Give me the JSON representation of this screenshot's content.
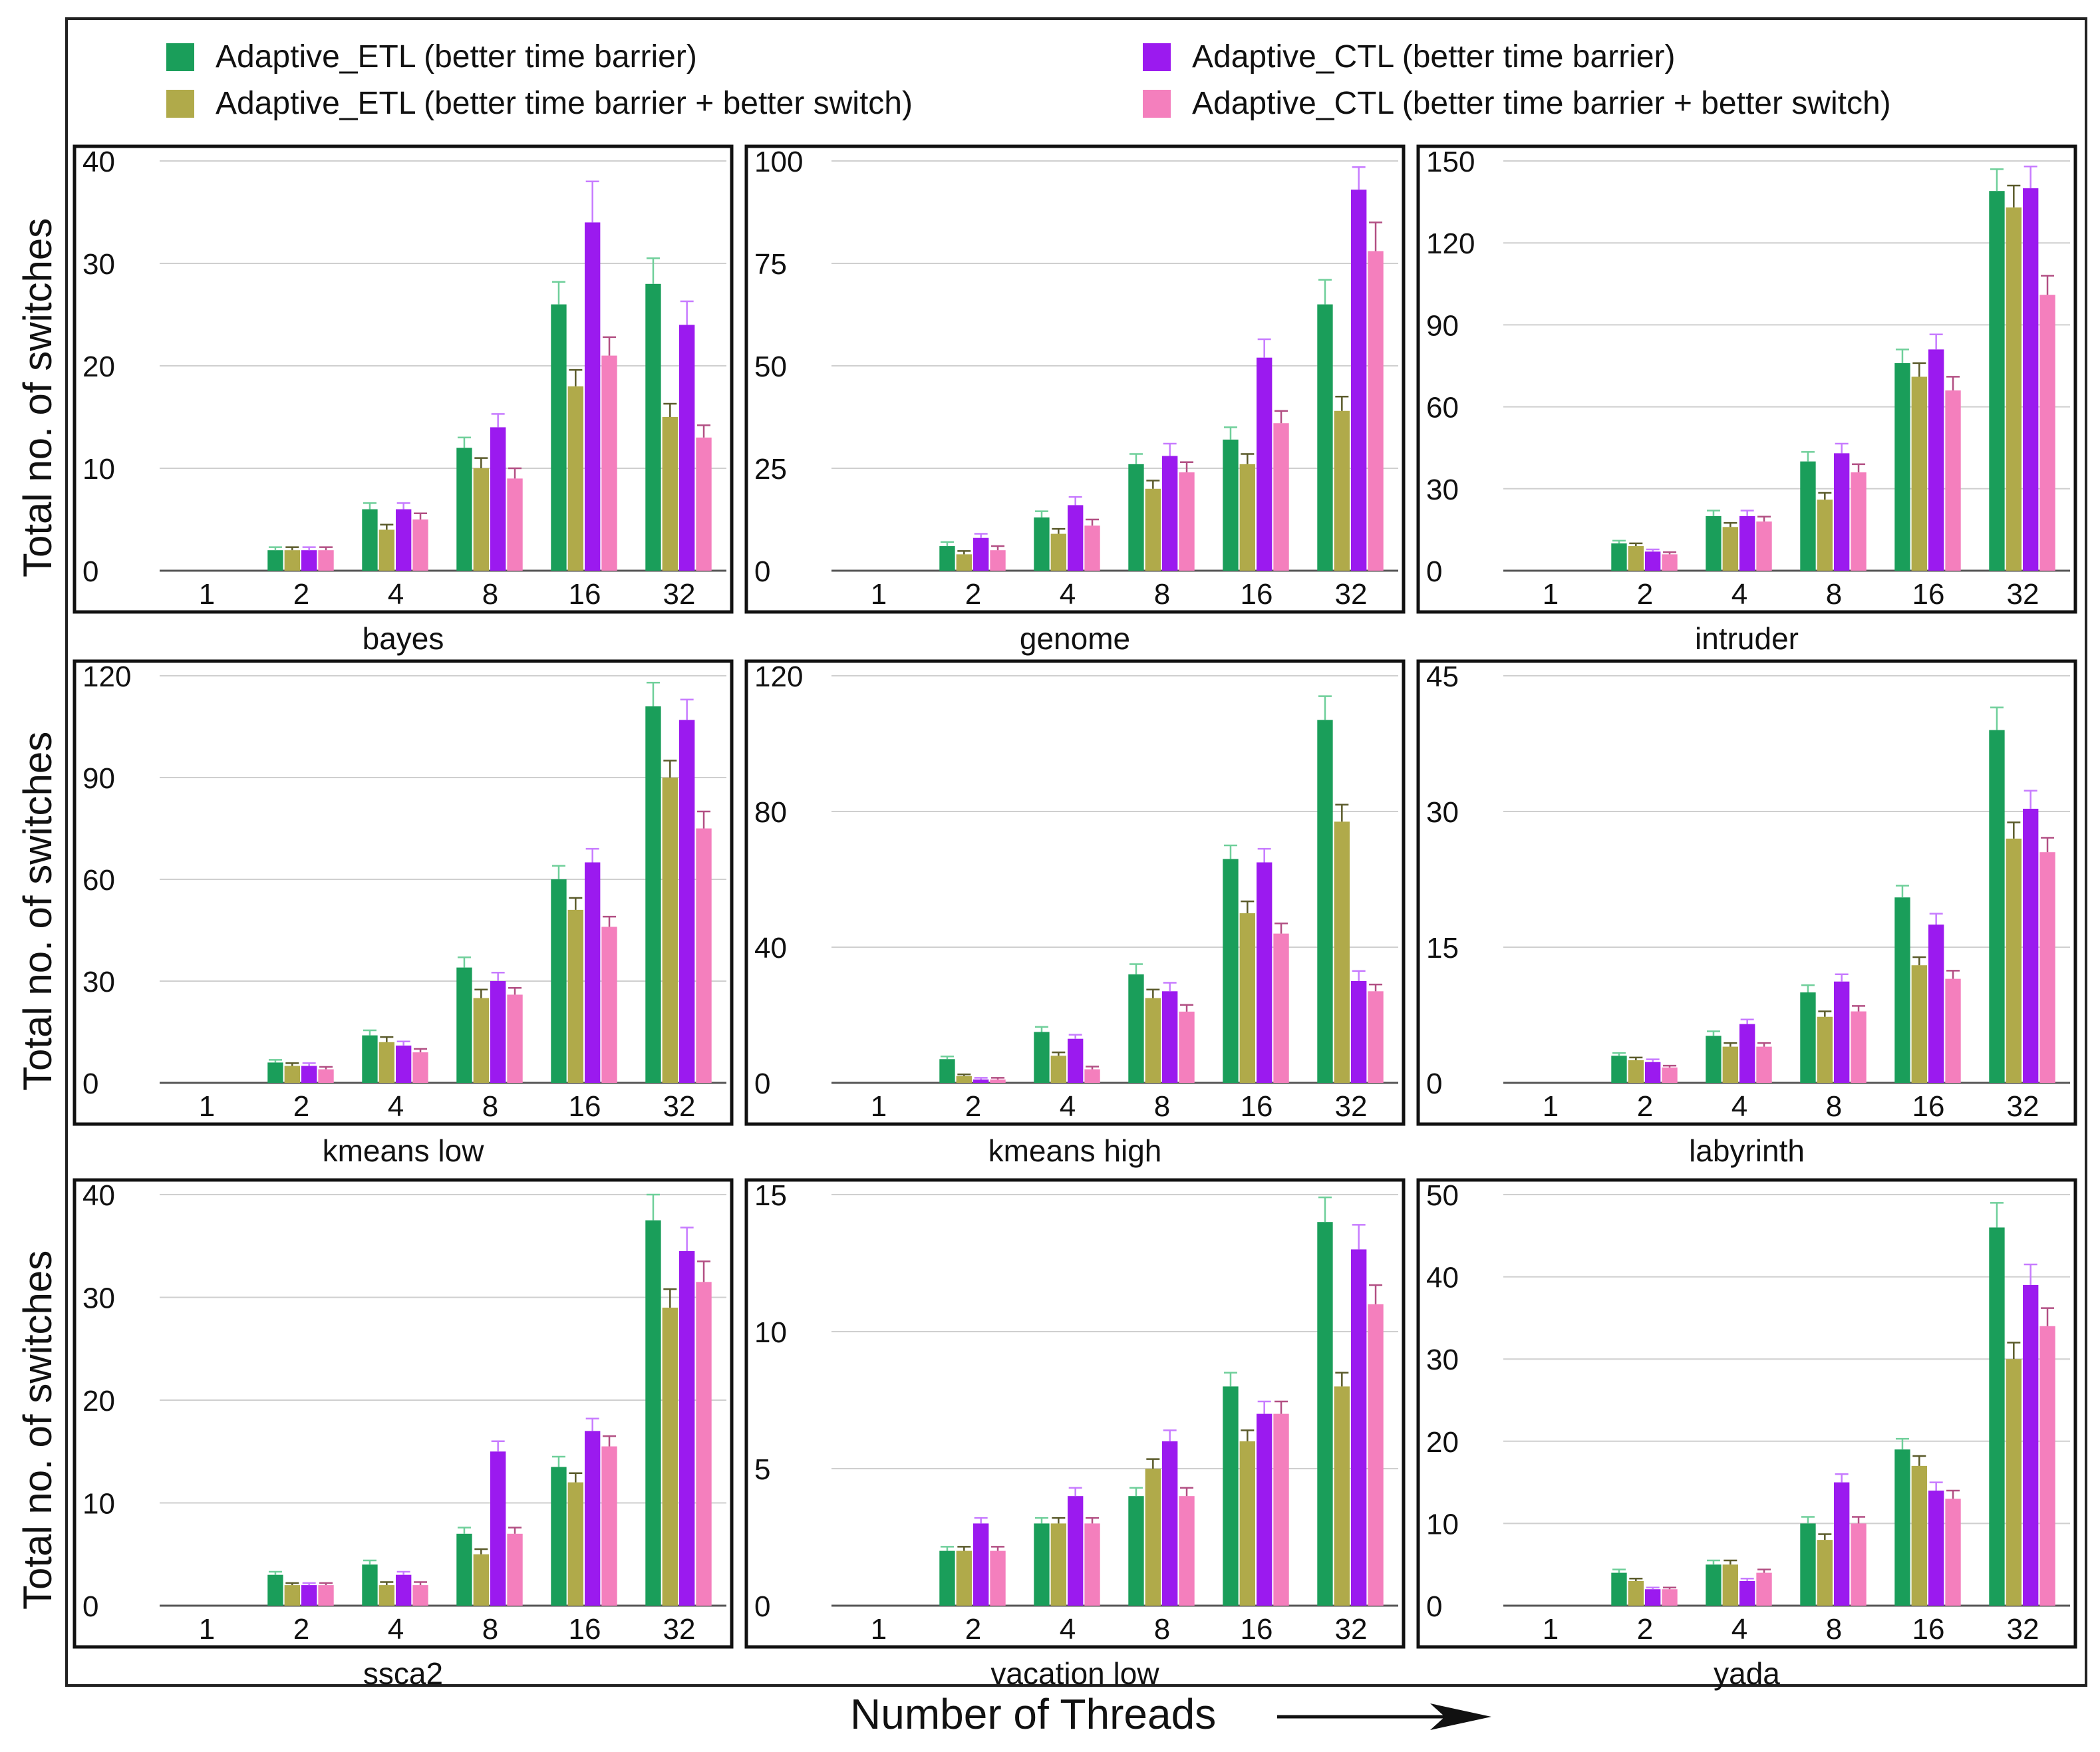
{
  "legend": [
    {
      "label": "Adaptive_ETL (better time barrier)",
      "color": "#1a9e5a"
    },
    {
      "label": "Adaptive_ETL (better time barrier + better switch)",
      "color": "#b0aa4a"
    },
    {
      "label": "Adaptive_CTL (better time barrier)",
      "color": "#9b1aef"
    },
    {
      "label": "Adaptive_CTL (better time barrier + better switch)",
      "color": "#f47fbd"
    }
  ],
  "y_axis_label": "Total no. of switches",
  "x_axis_label": "Number of Threads",
  "chart_data": [
    {
      "type": "bar",
      "title": "bayes",
      "categories": [
        "1",
        "2",
        "4",
        "8",
        "16",
        "32"
      ],
      "ylim": [
        0,
        40
      ],
      "yticks": [
        0,
        10,
        20,
        30,
        40
      ],
      "series": [
        {
          "name": "Adaptive_ETL (better time barrier)",
          "values": [
            0,
            2,
            6,
            12,
            26,
            28
          ],
          "errors": [
            0,
            0.3,
            0.6,
            1,
            2.2,
            2.5
          ]
        },
        {
          "name": "Adaptive_ETL (better time barrier + better switch)",
          "values": [
            0,
            2,
            4,
            10,
            18,
            15
          ],
          "errors": [
            0,
            0.3,
            0.5,
            1,
            1.6,
            1.3
          ]
        },
        {
          "name": "Adaptive_CTL (better time barrier)",
          "values": [
            0,
            2,
            6,
            14,
            34,
            24
          ],
          "errors": [
            0,
            0.3,
            0.6,
            1.3,
            4,
            2.3
          ]
        },
        {
          "name": "Adaptive_CTL (better time barrier + better switch)",
          "values": [
            0,
            2,
            5,
            9,
            21,
            13
          ],
          "errors": [
            0,
            0.3,
            0.6,
            1,
            1.8,
            1.2
          ]
        }
      ]
    },
    {
      "type": "bar",
      "title": "genome",
      "categories": [
        "1",
        "2",
        "4",
        "8",
        "16",
        "32"
      ],
      "ylim": [
        0,
        100
      ],
      "yticks": [
        0,
        25,
        50,
        75,
        100
      ],
      "series": [
        {
          "name": "Adaptive_ETL (better time barrier)",
          "values": [
            0,
            6,
            13,
            26,
            32,
            65
          ],
          "errors": [
            0,
            1,
            1.5,
            2.5,
            3,
            6
          ]
        },
        {
          "name": "Adaptive_ETL (better time barrier + better switch)",
          "values": [
            0,
            4,
            9,
            20,
            26,
            39
          ],
          "errors": [
            0,
            0.8,
            1.2,
            2,
            2.5,
            3.5
          ]
        },
        {
          "name": "Adaptive_CTL (better time barrier)",
          "values": [
            0,
            8,
            16,
            28,
            52,
            93
          ],
          "errors": [
            0,
            1,
            2,
            3,
            4.5,
            5.5
          ]
        },
        {
          "name": "Adaptive_CTL (better time barrier + better switch)",
          "values": [
            0,
            5,
            11,
            24,
            36,
            78
          ],
          "errors": [
            0,
            1,
            1.5,
            2.5,
            3,
            7
          ]
        }
      ]
    },
    {
      "type": "bar",
      "title": "intruder",
      "categories": [
        "1",
        "2",
        "4",
        "8",
        "16",
        "32"
      ],
      "ylim": [
        0,
        150
      ],
      "yticks": [
        0,
        30,
        60,
        90,
        120,
        150
      ],
      "series": [
        {
          "name": "Adaptive_ETL (better time barrier)",
          "values": [
            0,
            10,
            20,
            40,
            76,
            139
          ],
          "errors": [
            0,
            1,
            2,
            3.5,
            5,
            8
          ]
        },
        {
          "name": "Adaptive_ETL (better time barrier + better switch)",
          "values": [
            0,
            9,
            16,
            26,
            71,
            133
          ],
          "errors": [
            0,
            1,
            1.5,
            2.5,
            5,
            8
          ]
        },
        {
          "name": "Adaptive_CTL (better time barrier)",
          "values": [
            0,
            7,
            20,
            43,
            81,
            140
          ],
          "errors": [
            0,
            0.8,
            2,
            3.5,
            5.5,
            8
          ]
        },
        {
          "name": "Adaptive_CTL (better time barrier + better switch)",
          "values": [
            0,
            6,
            18,
            36,
            66,
            101
          ],
          "errors": [
            0,
            0.8,
            1.8,
            3,
            5,
            7
          ]
        }
      ]
    },
    {
      "type": "bar",
      "title": "kmeans low",
      "categories": [
        "1",
        "2",
        "4",
        "8",
        "16",
        "32"
      ],
      "ylim": [
        0,
        120
      ],
      "yticks": [
        0,
        30,
        60,
        90,
        120
      ],
      "series": [
        {
          "name": "Adaptive_ETL (better time barrier)",
          "values": [
            0,
            6,
            14,
            34,
            60,
            111
          ],
          "errors": [
            0,
            0.8,
            1.5,
            3,
            4,
            7
          ]
        },
        {
          "name": "Adaptive_ETL (better time barrier + better switch)",
          "values": [
            0,
            5,
            12,
            25,
            51,
            90
          ],
          "errors": [
            0,
            0.8,
            1.5,
            2.5,
            3.5,
            5
          ]
        },
        {
          "name": "Adaptive_CTL (better time barrier)",
          "values": [
            0,
            5,
            11,
            30,
            65,
            107
          ],
          "errors": [
            0,
            0.8,
            1.2,
            2.5,
            4,
            6
          ]
        },
        {
          "name": "Adaptive_CTL (better time barrier + better switch)",
          "values": [
            0,
            4,
            9,
            26,
            46,
            75
          ],
          "errors": [
            0,
            0.7,
            1,
            2,
            3,
            5
          ]
        }
      ]
    },
    {
      "type": "bar",
      "title": "kmeans high",
      "categories": [
        "1",
        "2",
        "4",
        "8",
        "16",
        "32"
      ],
      "ylim": [
        0,
        120
      ],
      "yticks": [
        0,
        40,
        80,
        120
      ],
      "series": [
        {
          "name": "Adaptive_ETL (better time barrier)",
          "values": [
            0,
            7,
            15,
            32,
            66,
            107
          ],
          "errors": [
            0,
            0.8,
            1.5,
            3,
            4,
            7
          ]
        },
        {
          "name": "Adaptive_ETL (better time barrier + better switch)",
          "values": [
            0,
            2,
            8,
            25,
            50,
            77
          ],
          "errors": [
            0,
            0.5,
            1,
            2.5,
            3.5,
            5
          ]
        },
        {
          "name": "Adaptive_CTL (better time barrier)",
          "values": [
            0,
            1,
            13,
            27,
            65,
            30
          ],
          "errors": [
            0,
            0.5,
            1.2,
            2.5,
            4,
            3
          ]
        },
        {
          "name": "Adaptive_CTL (better time barrier + better switch)",
          "values": [
            0,
            1,
            4,
            21,
            44,
            27
          ],
          "errors": [
            0,
            0.5,
            0.8,
            2,
            3,
            2
          ]
        }
      ]
    },
    {
      "type": "bar",
      "title": "labyrinth",
      "categories": [
        "1",
        "2",
        "4",
        "8",
        "16",
        "32"
      ],
      "ylim": [
        0,
        45
      ],
      "yticks": [
        0,
        15,
        30,
        45
      ],
      "series": [
        {
          "name": "Adaptive_ETL (better time barrier)",
          "values": [
            0,
            3,
            5.2,
            10,
            20.5,
            39
          ],
          "errors": [
            0,
            0.3,
            0.5,
            0.8,
            1.3,
            2.5
          ]
        },
        {
          "name": "Adaptive_ETL (better time barrier + better switch)",
          "values": [
            0,
            2.5,
            4,
            7.3,
            13,
            27
          ],
          "errors": [
            0,
            0.3,
            0.4,
            0.6,
            0.9,
            1.8
          ]
        },
        {
          "name": "Adaptive_CTL (better time barrier)",
          "values": [
            0,
            2.3,
            6.5,
            11.2,
            17.5,
            30.3
          ],
          "errors": [
            0,
            0.3,
            0.5,
            0.8,
            1.2,
            2
          ]
        },
        {
          "name": "Adaptive_CTL (better time barrier + better switch)",
          "values": [
            0,
            1.7,
            4,
            7.9,
            11.5,
            25.5
          ],
          "errors": [
            0,
            0.2,
            0.4,
            0.6,
            0.9,
            1.6
          ]
        }
      ]
    },
    {
      "type": "bar",
      "title": "ssca2",
      "categories": [
        "1",
        "2",
        "4",
        "8",
        "16",
        "32"
      ],
      "ylim": [
        0,
        40
      ],
      "yticks": [
        0,
        10,
        20,
        30,
        40
      ],
      "series": [
        {
          "name": "Adaptive_ETL (better time barrier)",
          "values": [
            0,
            3,
            4,
            7,
            13.5,
            37.5
          ],
          "errors": [
            0,
            0.3,
            0.4,
            0.6,
            1,
            2.5
          ]
        },
        {
          "name": "Adaptive_ETL (better time barrier + better switch)",
          "values": [
            0,
            2,
            2,
            5,
            12,
            29
          ],
          "errors": [
            0,
            0.2,
            0.3,
            0.5,
            0.9,
            1.8
          ]
        },
        {
          "name": "Adaptive_CTL (better time barrier)",
          "values": [
            0,
            2,
            3,
            15,
            17,
            34.5
          ],
          "errors": [
            0,
            0.2,
            0.3,
            1,
            1.2,
            2.3
          ]
        },
        {
          "name": "Adaptive_CTL (better time barrier + better switch)",
          "values": [
            0,
            2,
            2,
            7,
            15.5,
            31.5
          ],
          "errors": [
            0,
            0.2,
            0.3,
            0.6,
            1,
            2
          ]
        }
      ]
    },
    {
      "type": "bar",
      "title": "vacation low",
      "categories": [
        "1",
        "2",
        "4",
        "8",
        "16",
        "32"
      ],
      "ylim": [
        0,
        15
      ],
      "yticks": [
        0,
        5,
        10,
        15
      ],
      "series": [
        {
          "name": "Adaptive_ETL (better time barrier)",
          "values": [
            0,
            2,
            3,
            4,
            8,
            14
          ],
          "errors": [
            0,
            0.15,
            0.2,
            0.3,
            0.5,
            0.9
          ]
        },
        {
          "name": "Adaptive_ETL (better time barrier + better switch)",
          "values": [
            0,
            2,
            3,
            5,
            6,
            8
          ],
          "errors": [
            0,
            0.15,
            0.2,
            0.35,
            0.4,
            0.5
          ]
        },
        {
          "name": "Adaptive_CTL (better time barrier)",
          "values": [
            0,
            3,
            4,
            6,
            7,
            13
          ],
          "errors": [
            0,
            0.2,
            0.3,
            0.4,
            0.45,
            0.9
          ]
        },
        {
          "name": "Adaptive_CTL (better time barrier + better switch)",
          "values": [
            0,
            2,
            3,
            4,
            7,
            11
          ],
          "errors": [
            0,
            0.15,
            0.2,
            0.3,
            0.45,
            0.7
          ]
        }
      ]
    },
    {
      "type": "bar",
      "title": "yada",
      "categories": [
        "1",
        "2",
        "4",
        "8",
        "16",
        "32"
      ],
      "ylim": [
        0,
        50
      ],
      "yticks": [
        0,
        10,
        20,
        30,
        40,
        50
      ],
      "series": [
        {
          "name": "Adaptive_ETL (better time barrier)",
          "values": [
            0,
            4,
            5,
            10,
            19,
            46
          ],
          "errors": [
            0,
            0.4,
            0.5,
            0.8,
            1.3,
            3
          ]
        },
        {
          "name": "Adaptive_ETL (better time barrier + better switch)",
          "values": [
            0,
            3,
            5,
            8,
            17,
            30
          ],
          "errors": [
            0,
            0.3,
            0.5,
            0.7,
            1.2,
            2
          ]
        },
        {
          "name": "Adaptive_CTL (better time barrier)",
          "values": [
            0,
            2,
            3,
            15,
            14,
            39
          ],
          "errors": [
            0,
            0.2,
            0.3,
            1,
            1,
            2.5
          ]
        },
        {
          "name": "Adaptive_CTL (better time barrier + better switch)",
          "values": [
            0,
            2,
            4,
            10,
            13,
            34
          ],
          "errors": [
            0,
            0.2,
            0.4,
            0.8,
            1,
            2.2
          ]
        }
      ]
    }
  ]
}
